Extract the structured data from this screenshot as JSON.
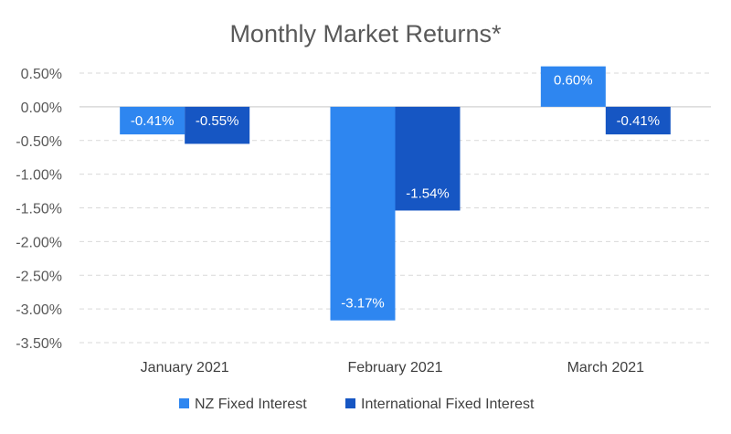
{
  "chart_data": {
    "type": "bar",
    "title": "Monthly Market Returns*",
    "categories": [
      "January 2021",
      "February 2021",
      "March 2021"
    ],
    "series": [
      {
        "name": "NZ Fixed Interest",
        "color": "#2e86f0",
        "values": [
          -0.41,
          -3.17,
          0.6
        ],
        "labels": [
          "-0.41%",
          "-3.17%",
          "0.60%"
        ]
      },
      {
        "name": "International Fixed Interest",
        "color": "#1656c3",
        "values": [
          -0.55,
          -1.54,
          -0.41
        ],
        "labels": [
          "-0.55%",
          "-1.54%",
          "-0.41%"
        ]
      }
    ],
    "ylim": [
      -3.5,
      0.5
    ],
    "yticks": [
      0.5,
      0.0,
      -0.5,
      -1.0,
      -1.5,
      -2.0,
      -2.5,
      -3.0,
      -3.5
    ],
    "ytick_labels": [
      "0.50%",
      "0.00%",
      "-0.50%",
      "-1.00%",
      "-1.50%",
      "-2.00%",
      "-2.50%",
      "-3.00%",
      "-3.50%"
    ],
    "xlabel": "",
    "ylabel": "",
    "grid": true,
    "legend_position": "bottom"
  }
}
